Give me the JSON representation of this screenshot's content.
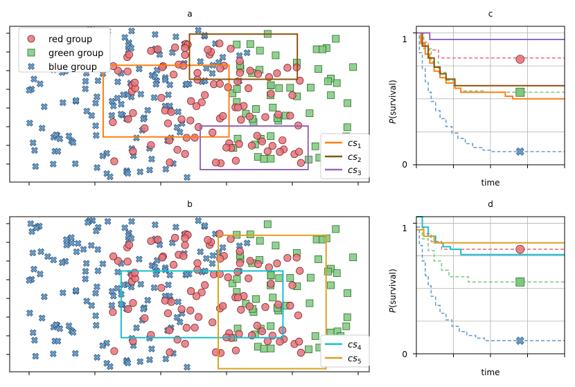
{
  "figure": {
    "panel_labels": [
      "a",
      "b",
      "c",
      "d"
    ]
  },
  "colors": {
    "red": "#e8747c",
    "green": "#7fc97f",
    "blue": "#6a9ecb",
    "cs1": "#ff7f0e",
    "cs2": "#8c510a",
    "cs3": "#9467bd",
    "cs4": "#17becf",
    "cs5": "#e0a01c"
  },
  "chart_data": [
    {
      "panel": "a",
      "type": "scatter",
      "title": "a",
      "xlim": [
        0,
        10
      ],
      "ylim": [
        0,
        10
      ],
      "legend": {
        "placement": "top-left",
        "entries": [
          "red group",
          "green group",
          "blue group"
        ]
      },
      "box_legend": {
        "placement": "bottom-right",
        "entries": [
          {
            "name": "cs",
            "sub": "1",
            "color": "cs1"
          },
          {
            "name": "cs",
            "sub": "2",
            "color": "cs2"
          },
          {
            "name": "cs",
            "sub": "3",
            "color": "cs3"
          }
        ]
      },
      "boxes": [
        {
          "name": "cs1",
          "color": "cs1",
          "x0": 2.6,
          "x1": 6.1,
          "y0": 2.9,
          "y1": 7.5
        },
        {
          "name": "cs2",
          "color": "cs2",
          "x0": 5.0,
          "x1": 8.0,
          "y0": 6.6,
          "y1": 9.5
        },
        {
          "name": "cs3",
          "color": "cs3",
          "x0": 5.3,
          "x1": 8.3,
          "y0": 0.8,
          "y1": 3.6
        }
      ]
    },
    {
      "panel": "b",
      "type": "scatter",
      "title": "b",
      "xlim": [
        0,
        10
      ],
      "ylim": [
        0,
        10
      ],
      "box_legend": {
        "placement": "bottom-right",
        "entries": [
          {
            "name": "cs",
            "sub": "4",
            "color": "cs4"
          },
          {
            "name": "cs",
            "sub": "5",
            "color": "cs5"
          }
        ]
      },
      "boxes": [
        {
          "name": "cs4",
          "color": "cs4",
          "x0": 3.1,
          "x1": 7.6,
          "y0": 2.2,
          "y1": 6.5
        },
        {
          "name": "cs5",
          "color": "cs5",
          "x0": 5.8,
          "x1": 8.8,
          "y0": 0.2,
          "y1": 8.8
        }
      ]
    },
    {
      "panel": "c",
      "type": "line",
      "title": "c",
      "xlabel": "time",
      "ylabel": "P(survival)",
      "ytick_labels": [
        "0",
        "1"
      ],
      "xlim": [
        0,
        10
      ],
      "ylim": [
        0,
        1.05
      ],
      "series": [
        {
          "name": "red group",
          "color": "red",
          "dashed": true,
          "x": [
            0,
            0.4,
            0.8,
            1.5,
            10
          ],
          "y": [
            1,
            0.93,
            0.87,
            0.81,
            0.81
          ],
          "marker": "circle",
          "marker_x": 7.0,
          "marker_y": 0.8
        },
        {
          "name": "green group",
          "color": "green",
          "dashed": true,
          "x": [
            0,
            0.5,
            1.0,
            1.5,
            2.0,
            2.5,
            3.0,
            4.5,
            10
          ],
          "y": [
            1,
            0.88,
            0.78,
            0.7,
            0.64,
            0.6,
            0.56,
            0.55,
            0.55
          ],
          "marker": "square",
          "marker_x": 7.0,
          "marker_y": 0.55
        },
        {
          "name": "blue group",
          "color": "blue",
          "dashed": true,
          "x": [
            0,
            0.2,
            0.4,
            0.6,
            0.8,
            1.0,
            1.3,
            1.6,
            2.0,
            2.4,
            2.8,
            3.3,
            3.8,
            4.5,
            5.0,
            10
          ],
          "y": [
            1,
            0.85,
            0.73,
            0.63,
            0.55,
            0.48,
            0.41,
            0.35,
            0.29,
            0.24,
            0.2,
            0.16,
            0.13,
            0.11,
            0.1,
            0.1
          ],
          "marker": "x",
          "marker_x": 7.0,
          "marker_y": 0.1
        },
        {
          "name": "cs1",
          "color": "cs1",
          "dashed": false,
          "x": [
            0,
            0.3,
            0.6,
            0.9,
            1.2,
            1.6,
            2.0,
            2.6,
            3.0,
            6.0,
            6.5,
            10
          ],
          "y": [
            1,
            0.92,
            0.84,
            0.77,
            0.71,
            0.66,
            0.62,
            0.58,
            0.55,
            0.52,
            0.5,
            0.5
          ]
        },
        {
          "name": "cs2",
          "color": "cs2",
          "dashed": false,
          "x": [
            0,
            0.4,
            0.8,
            1.2,
            1.6,
            2.0,
            2.6,
            10
          ],
          "y": [
            1,
            0.9,
            0.81,
            0.74,
            0.69,
            0.65,
            0.6,
            0.6
          ]
        },
        {
          "name": "cs3",
          "color": "cs3",
          "dashed": false,
          "x": [
            0,
            0.9,
            10
          ],
          "y": [
            1,
            0.95,
            0.95
          ]
        }
      ]
    },
    {
      "panel": "d",
      "type": "line",
      "title": "d",
      "xlabel": "time",
      "ylabel": "P(survival)",
      "ytick_labels": [
        "0",
        "1"
      ],
      "xlim": [
        0,
        10
      ],
      "ylim": [
        0,
        1.05
      ],
      "series": [
        {
          "name": "red group",
          "color": "red",
          "dashed": true,
          "x": [
            0,
            0.5,
            1.0,
            1.7,
            10
          ],
          "y": [
            0.97,
            0.92,
            0.86,
            0.8,
            0.8
          ],
          "marker": "circle",
          "marker_x": 7.0,
          "marker_y": 0.8
        },
        {
          "name": "green group",
          "color": "green",
          "dashed": true,
          "x": [
            0,
            0.4,
            0.8,
            1.2,
            1.7,
            2.2,
            3.5,
            10
          ],
          "y": [
            0.97,
            0.88,
            0.79,
            0.71,
            0.64,
            0.59,
            0.55,
            0.55
          ],
          "marker": "square",
          "marker_x": 7.0,
          "marker_y": 0.55
        },
        {
          "name": "blue group",
          "color": "blue",
          "dashed": true,
          "x": [
            0,
            0.2,
            0.4,
            0.6,
            0.8,
            1.0,
            1.3,
            1.6,
            2.0,
            2.4,
            2.9,
            3.4,
            4.0,
            4.6,
            10
          ],
          "y": [
            0.97,
            0.83,
            0.71,
            0.6,
            0.52,
            0.44,
            0.37,
            0.31,
            0.26,
            0.21,
            0.17,
            0.14,
            0.12,
            0.1,
            0.1
          ],
          "marker": "x",
          "marker_x": 7.0,
          "marker_y": 0.1
        },
        {
          "name": "cs4",
          "color": "cs4",
          "dashed": false,
          "x": [
            0,
            0.4,
            0.8,
            1.3,
            1.8,
            2.3,
            3.0,
            10
          ],
          "y": [
            1.05,
            0.97,
            0.9,
            0.85,
            0.82,
            0.8,
            0.76,
            0.76
          ]
        },
        {
          "name": "cs5",
          "color": "cs5",
          "dashed": false,
          "x": [
            0,
            0.5,
            1.2,
            10
          ],
          "y": [
            0.95,
            0.9,
            0.85,
            0.85
          ]
        }
      ]
    }
  ]
}
